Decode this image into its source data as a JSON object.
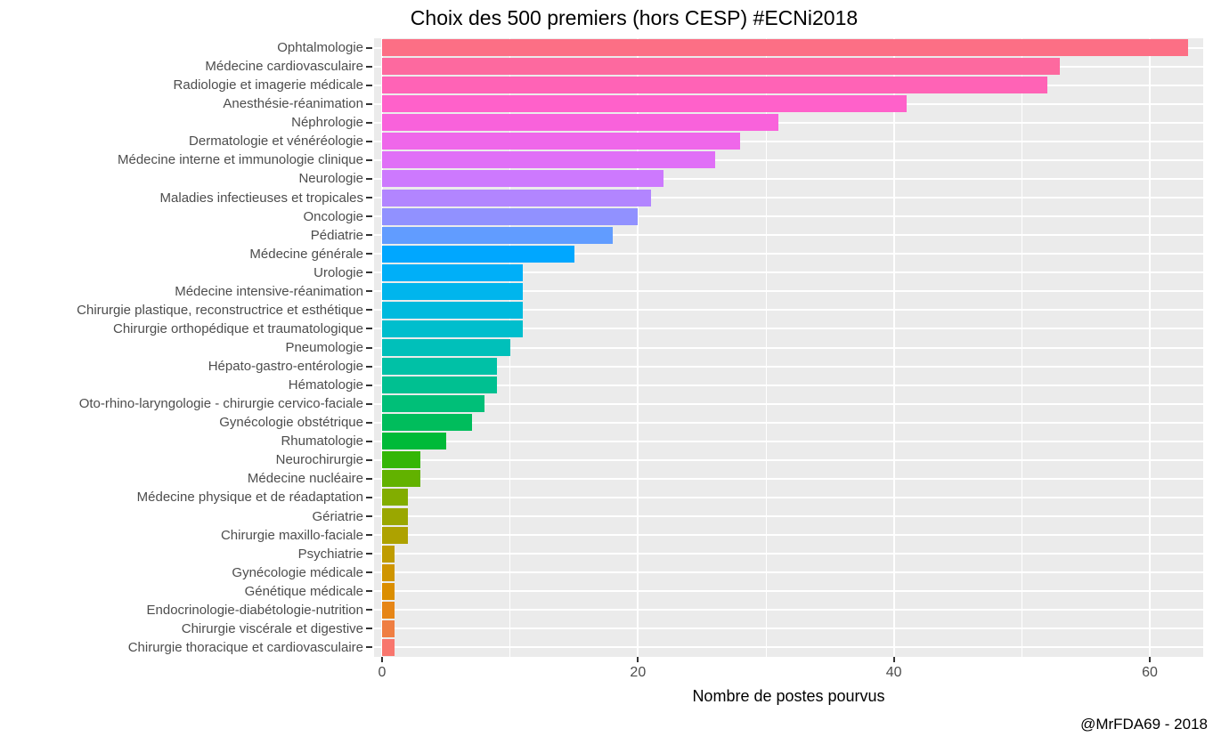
{
  "title": "Choix des 500 premiers (hors CESP) #ECNi2018",
  "footer": {
    "attribution": "@MrFDA69 - 2018"
  },
  "chart_data": {
    "type": "bar",
    "orientation": "horizontal",
    "title": "Choix des 500 premiers (hors CESP) #ECNi2018",
    "xlabel": "Nombre de postes pourvus",
    "ylabel": "",
    "xlim": [
      0,
      64.3
    ],
    "x_ticks": [
      0,
      20,
      40,
      60
    ],
    "x_tick_labels": [
      "0",
      "20",
      "40",
      "60"
    ],
    "x_minor_gridlines": [
      10,
      30,
      50
    ],
    "grid": "on",
    "legend": "none",
    "panel_background": "#EBEBEB",
    "gridline_color": "#FFFFFF",
    "tick_color": "#333333",
    "tick_label_color": "#4D4D4D",
    "categories": [
      "Ophtalmologie",
      "Médecine cardiovasculaire",
      "Radiologie et imagerie médicale",
      "Anesthésie-réanimation",
      "Néphrologie",
      "Dermatologie et vénéréologie",
      "Médecine interne et immunologie clinique",
      "Neurologie",
      "Maladies infectieuses et tropicales",
      "Oncologie",
      "Pédiatrie",
      "Médecine générale",
      "Urologie",
      "Médecine intensive-réanimation",
      "Chirurgie plastique, reconstructrice et esthétique",
      "Chirurgie orthopédique et traumatologique",
      "Pneumologie",
      "Hépato-gastro-entérologie",
      "Hématologie",
      "Oto-rhino-laryngologie - chirurgie cervico-faciale",
      "Gynécologie obstétrique",
      "Rhumatologie",
      "Neurochirurgie",
      "Médecine nucléaire",
      "Médecine physique et de réadaptation",
      "Gériatrie",
      "Chirurgie maxillo-faciale",
      "Psychiatrie",
      "Gynécologie médicale",
      "Génétique médicale",
      "Endocrinologie-diabétologie-nutrition",
      "Chirurgie viscérale et digestive",
      "Chirurgie thoracique et cardiovasculaire"
    ],
    "values": [
      63,
      53,
      52,
      41,
      31,
      28,
      26,
      22,
      21,
      20,
      18,
      15,
      11,
      11,
      11,
      11,
      10,
      9,
      9,
      8,
      7,
      5,
      3,
      3,
      2,
      2,
      2,
      1,
      1,
      1,
      1,
      1,
      1
    ],
    "bar_colors": [
      "#FC6F85",
      "#FD699F",
      "#FF63B6",
      "#FF61CA",
      "#F962DB",
      "#EF67EA",
      "#E06FF7",
      "#CD79FE",
      "#B285FF",
      "#9191FF",
      "#619CFF",
      "#00A7FF",
      "#00AFF8",
      "#00B5ED",
      "#00BADE",
      "#00BECD",
      "#00C0BA",
      "#00C1A6",
      "#00C091",
      "#00BF78",
      "#00BD5C",
      "#00BA38",
      "#34B607",
      "#62B200",
      "#82AD00",
      "#9AA700",
      "#AEA200",
      "#BF9C00",
      "#CF9500",
      "#DB8E00",
      "#E68617",
      "#EF7E42",
      "#F8766D"
    ]
  }
}
